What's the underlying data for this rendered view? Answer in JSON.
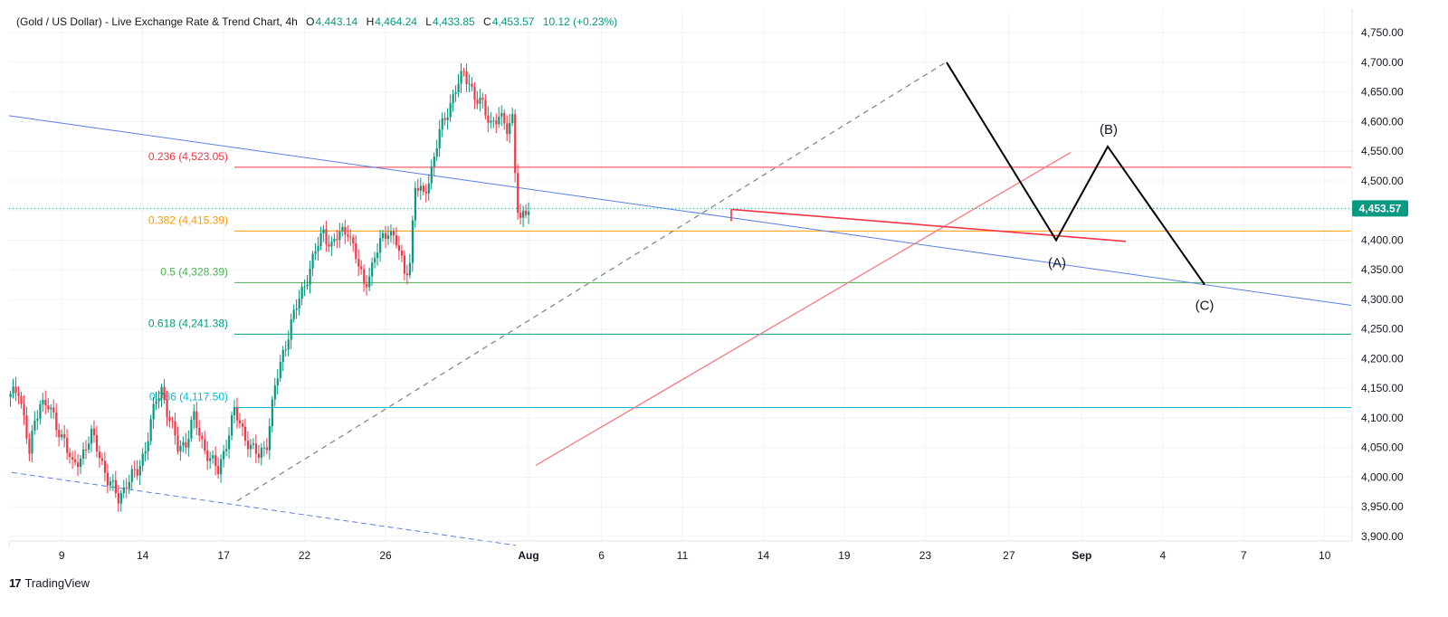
{
  "header": {
    "symbol": "(Gold / US Dollar) - Live Exchange Rate & Trend Chart, 4h",
    "o_label": "O",
    "o_value": "4,443.14",
    "h_label": "H",
    "h_value": "4,464.24",
    "l_label": "L",
    "l_value": "4,433.85",
    "c_label": "C",
    "c_value": "4,453.57",
    "change": "10.12 (+0.23%)"
  },
  "brand": {
    "logo_text": "17",
    "name": "TradingView"
  },
  "colors": {
    "up": "#089981",
    "down": "#f23645",
    "grid": "#f0f3fa",
    "trendline_blue": "#5b7fde",
    "trend_red": "#f77c80",
    "wave": "#000000",
    "fib_0236": "#f23645",
    "fib_0382": "#ff9800",
    "fib_05": "#4caf50",
    "fib_0618": "#089981",
    "fib_0786": "#00bcd4",
    "last_price_bg": "#089981"
  },
  "chart_data": {
    "type": "candlestick",
    "title": "(Gold / US Dollar) - Live Exchange Rate & Trend Chart, 4h",
    "interval": "4h",
    "grid": true,
    "ylim": [
      3880,
      4775
    ],
    "x_tick_labels": [
      "9",
      "14",
      "17",
      "22",
      "26",
      "Aug",
      "6",
      "11",
      "14",
      "19",
      "23",
      "27",
      "Sep",
      "4",
      "7",
      "10"
    ],
    "y_tick_labels": [
      "4,750.00",
      "4,700.00",
      "4,650.00",
      "4,600.00",
      "4,550.00",
      "4,500.00",
      "4,450.00",
      "4,400.00",
      "4,350.00",
      "4,300.00",
      "4,250.00",
      "4,200.00",
      "4,150.00",
      "4,100.00",
      "4,050.00",
      "4,000.00",
      "3,950.00",
      "3,900.00"
    ],
    "last_price": {
      "value": 4453.57,
      "label": "4,453.57"
    },
    "fibonacci_levels": [
      {
        "label": "0.236 (4,523.05)",
        "value": 4523.05,
        "color": "#f23645"
      },
      {
        "label": "0.382 (4,415.39)",
        "value": 4415.39,
        "color": "#ff9800"
      },
      {
        "label": "0.5 (4,328.39)",
        "value": 4328.39,
        "color": "#4caf50"
      },
      {
        "label": "0.618 (4,241.38)",
        "value": 4241.38,
        "color": "#089981"
      },
      {
        "label": "0.786 (4,117.50)",
        "value": 4117.5,
        "color": "#00bcd4"
      }
    ],
    "wave_labels": [
      "(A)",
      "(B)",
      "(C)"
    ],
    "price_anchors": [
      [
        0,
        4135
      ],
      [
        3,
        4150
      ],
      [
        5,
        4100
      ],
      [
        7,
        4040
      ],
      [
        9,
        4090
      ],
      [
        11,
        4130
      ],
      [
        14,
        4120
      ],
      [
        17,
        4085
      ],
      [
        20,
        4065
      ],
      [
        23,
        4015
      ],
      [
        26,
        4035
      ],
      [
        30,
        4070
      ],
      [
        33,
        4040
      ],
      [
        36,
        3995
      ],
      [
        40,
        3965
      ],
      [
        43,
        3990
      ],
      [
        47,
        4010
      ],
      [
        50,
        4050
      ],
      [
        54,
        4130
      ],
      [
        56,
        4150
      ],
      [
        59,
        4095
      ],
      [
        62,
        4050
      ],
      [
        65,
        4060
      ],
      [
        68,
        4100
      ],
      [
        71,
        4060
      ],
      [
        74,
        4030
      ],
      [
        77,
        4010
      ],
      [
        80,
        4060
      ],
      [
        83,
        4110
      ],
      [
        86,
        4080
      ],
      [
        89,
        4050
      ],
      [
        92,
        4035
      ],
      [
        95,
        4060
      ],
      [
        98,
        4150
      ],
      [
        101,
        4210
      ],
      [
        104,
        4260
      ],
      [
        107,
        4300
      ],
      [
        110,
        4340
      ],
      [
        113,
        4380
      ],
      [
        116,
        4415
      ],
      [
        119,
        4390
      ],
      [
        122,
        4410
      ],
      [
        125,
        4420
      ],
      [
        128,
        4370
      ],
      [
        131,
        4325
      ],
      [
        134,
        4355
      ],
      [
        137,
        4395
      ],
      [
        140,
        4420
      ],
      [
        143,
        4395
      ],
      [
        146,
        4345
      ],
      [
        148,
        4365
      ],
      [
        150,
        4490
      ],
      [
        153,
        4475
      ],
      [
        156,
        4520
      ],
      [
        159,
        4580
      ],
      [
        162,
        4620
      ],
      [
        165,
        4655
      ],
      [
        168,
        4680
      ],
      [
        170,
        4670
      ],
      [
        172,
        4640
      ],
      [
        175,
        4625
      ],
      [
        178,
        4600
      ],
      [
        181,
        4605
      ],
      [
        184,
        4590
      ],
      [
        186,
        4610
      ],
      [
        187,
        4520
      ],
      [
        188,
        4450
      ],
      [
        189,
        4425
      ],
      [
        190,
        4440
      ],
      [
        191,
        4450
      ],
      [
        192,
        4455
      ]
    ]
  }
}
